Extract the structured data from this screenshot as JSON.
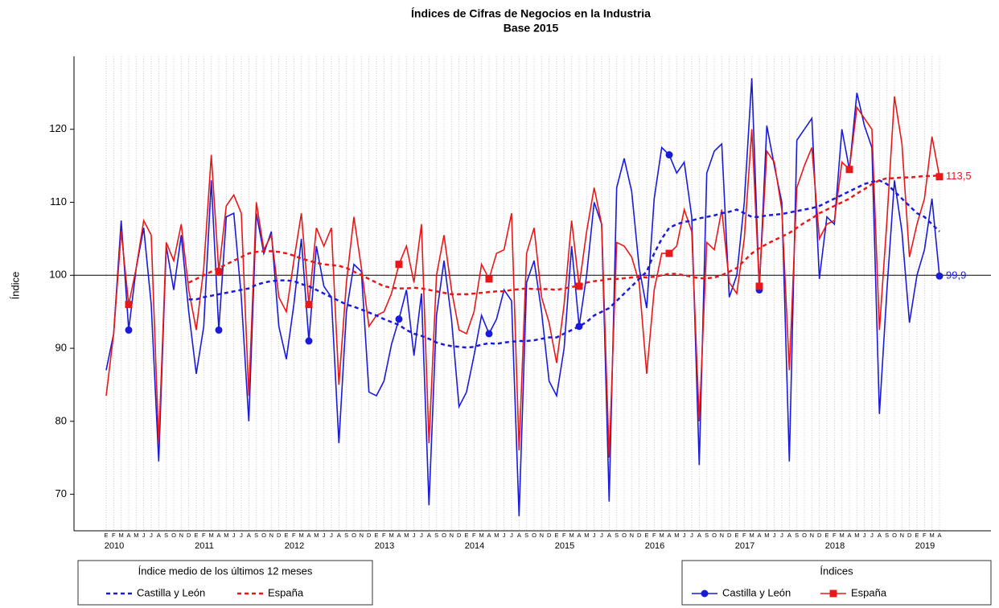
{
  "chart_data": {
    "type": "line",
    "title": "Índices de Cifras de Negocios en la Industria",
    "subtitle": "Base 2015",
    "y_label": "Índice",
    "categories": [
      "E",
      "F",
      "M",
      "A",
      "M",
      "J",
      "J",
      "A",
      "S",
      "O",
      "N",
      "D",
      "E",
      "F",
      "M",
      "A",
      "M",
      "J",
      "J",
      "A",
      "S",
      "O",
      "N",
      "D",
      "E",
      "F",
      "M",
      "A",
      "M",
      "J",
      "J",
      "A",
      "S",
      "O",
      "N",
      "D",
      "E",
      "F",
      "M",
      "A",
      "M",
      "J",
      "J",
      "A",
      "S",
      "O",
      "N",
      "D",
      "E",
      "F",
      "M",
      "A",
      "M",
      "J",
      "J",
      "A",
      "S",
      "O",
      "N",
      "D",
      "E",
      "F",
      "M",
      "A",
      "M",
      "J",
      "J",
      "A",
      "S",
      "O",
      "N",
      "D",
      "E",
      "F",
      "M",
      "A",
      "M",
      "J",
      "J",
      "A",
      "S",
      "O",
      "N",
      "D",
      "E",
      "F",
      "M",
      "A",
      "M",
      "J",
      "J",
      "A",
      "S",
      "O",
      "N",
      "D",
      "E",
      "F",
      "M",
      "A",
      "M",
      "J",
      "J",
      "A",
      "S",
      "O",
      "N",
      "D",
      "E",
      "F",
      "M",
      "A"
    ],
    "year_labels": [
      "2010",
      "2011",
      "2012",
      "2013",
      "2014",
      "2015",
      "2016",
      "2017",
      "2018",
      "2019"
    ],
    "ylim": [
      65,
      130
    ],
    "yticks": [
      70,
      80,
      90,
      100,
      110,
      120
    ],
    "hline": 100,
    "grid": true,
    "legend_titles": {
      "dashed": "Índice medio de los últimos 12 meses",
      "solid": "Índices"
    },
    "series": [
      {
        "name": "Castilla y León",
        "color": "#1a1adb",
        "style": "solid",
        "marker": "circle",
        "value_labels": {
          "111": "99,9"
        },
        "values": [
          87,
          92,
          107.5,
          92.5,
          101,
          106.5,
          96,
          74.5,
          104,
          98,
          105.5,
          95,
          86.5,
          93,
          113,
          92.5,
          108,
          108.5,
          97,
          80,
          108.5,
          103,
          106,
          93,
          88.5,
          96,
          105,
          91,
          104,
          98.5,
          97,
          77,
          95,
          101.5,
          100.5,
          84,
          83.5,
          85.5,
          90.5,
          94,
          98,
          89,
          97.5,
          68.5,
          94.5,
          102,
          94,
          82,
          84,
          89,
          94.5,
          92,
          94,
          98,
          96.5,
          67,
          99,
          102,
          95,
          85.5,
          83.5,
          90,
          104,
          93,
          100,
          110,
          107,
          69,
          112,
          116,
          111.5,
          101,
          95.5,
          110.5,
          117.5,
          116.5,
          114,
          115.5,
          108,
          74,
          114,
          117,
          118,
          97,
          100,
          110,
          127,
          98,
          120.5,
          115,
          110,
          74.5,
          118.5,
          120,
          121.5,
          99.5,
          108,
          107,
          120,
          114.5,
          125,
          120.5,
          117.5,
          81,
          98,
          113,
          106,
          93.5,
          100,
          103.5,
          110.5,
          99.9
        ]
      },
      {
        "name": "España",
        "color": "#e8181a",
        "style": "solid",
        "marker": "square",
        "value_labels": {
          "111": "113,5"
        },
        "values": [
          83.5,
          92,
          106,
          96,
          101,
          107.5,
          105.5,
          77,
          104.5,
          102,
          107,
          98,
          92.5,
          101,
          116.5,
          100.5,
          109.5,
          111,
          108.5,
          83.5,
          110,
          103.5,
          105.5,
          97,
          95,
          102,
          108.5,
          96,
          106.5,
          104,
          106.5,
          85,
          99,
          108,
          101,
          93,
          94.5,
          95,
          97.5,
          101.5,
          104,
          99,
          107,
          77,
          100,
          105.5,
          98,
          92.5,
          92,
          95,
          101.5,
          99.5,
          103,
          103.5,
          108.5,
          76,
          103,
          106.5,
          97,
          93.5,
          88,
          96,
          107.5,
          98.5,
          106,
          112,
          107,
          75,
          104.5,
          104,
          102.5,
          99,
          86.5,
          98,
          103,
          103,
          104,
          109,
          106,
          80,
          104.5,
          103.5,
          109,
          99,
          97.5,
          105,
          120,
          98.5,
          117,
          115.5,
          109,
          87,
          112,
          115,
          117.5,
          105,
          107,
          107.5,
          115.5,
          114.5,
          123,
          121.5,
          120,
          92.5,
          107.5,
          124.5,
          118,
          102.5,
          107,
          110.5,
          119,
          113.5
        ]
      },
      {
        "name": "Castilla y León",
        "color": "#1a1adb",
        "style": "dashed",
        "values": [
          null,
          null,
          null,
          null,
          null,
          null,
          null,
          null,
          null,
          null,
          null,
          96.7,
          96.7,
          97,
          97.2,
          97.4,
          97.6,
          97.8,
          98,
          98.2,
          98.7,
          99,
          99.2,
          99.3,
          99.3,
          99.2,
          98.8,
          98.5,
          98,
          97.5,
          97,
          96.5,
          96,
          95.7,
          95.3,
          94.9,
          94.5,
          94,
          93.6,
          93.2,
          92.5,
          92,
          91.7,
          91.3,
          90.8,
          90.5,
          90.3,
          90.2,
          90.1,
          90.2,
          90.5,
          90.7,
          90.6,
          90.8,
          90.9,
          91,
          91,
          91.1,
          91.3,
          91.5,
          91.5,
          92,
          92.5,
          93,
          93.6,
          94.5,
          95,
          95.5,
          96.5,
          97.5,
          98.5,
          99.5,
          100.5,
          103,
          105,
          106.5,
          107,
          107.3,
          107.5,
          107.8,
          108,
          108.2,
          108.5,
          108.7,
          109,
          108.5,
          108,
          108,
          108.2,
          108.3,
          108.4,
          108.6,
          108.8,
          109,
          109.2,
          109.5,
          110,
          110.5,
          111,
          111.5,
          112,
          112.5,
          112.8,
          113,
          112.5,
          111.5,
          110.5,
          109.5,
          108.5,
          108,
          107,
          106
        ]
      },
      {
        "name": "España",
        "color": "#e8181a",
        "style": "dashed",
        "values": [
          null,
          null,
          null,
          null,
          null,
          null,
          null,
          null,
          null,
          null,
          null,
          99,
          99.5,
          100,
          100.5,
          101,
          101.5,
          102,
          102.5,
          103,
          103.2,
          103.3,
          103.3,
          103.2,
          103,
          102.7,
          102.3,
          102,
          101.7,
          101.5,
          101.4,
          101.3,
          101,
          100.5,
          100,
          99.5,
          99,
          98.5,
          98.3,
          98.2,
          98.2,
          98.3,
          98.2,
          98,
          97.8,
          97.6,
          97.4,
          97.4,
          97.4,
          97.5,
          97.6,
          97.7,
          97.8,
          97.8,
          98,
          98.1,
          98.2,
          98.1,
          98.1,
          98.1,
          98,
          98.2,
          98.4,
          98.6,
          99,
          99.2,
          99.3,
          99.5,
          99.5,
          99.6,
          99.7,
          99.8,
          99.7,
          99.8,
          100,
          100.2,
          100.2,
          100,
          99.8,
          99.6,
          99.6,
          99.7,
          100,
          100.5,
          101,
          102,
          103,
          103.7,
          104.3,
          104.8,
          105.3,
          105.8,
          106.5,
          107.2,
          107.8,
          108.5,
          109,
          109.5,
          110,
          110.5,
          111.2,
          111.8,
          112.5,
          113,
          113.3,
          113.3,
          113.4,
          113.4,
          113.5,
          113.6,
          113.6,
          113.7
        ]
      }
    ]
  }
}
